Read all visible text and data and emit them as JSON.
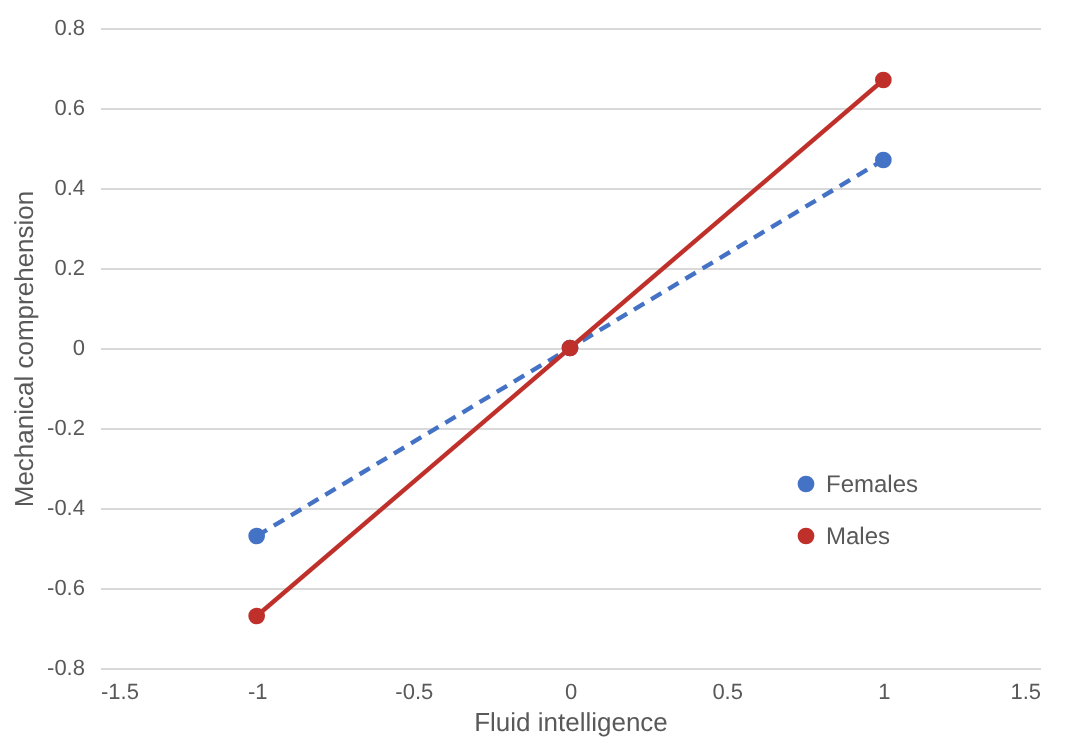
{
  "chart_data": {
    "type": "line",
    "xlabel": "Fluid intelligence",
    "ylabel": "Mechanical comprehension",
    "x": [
      -1,
      0,
      1
    ],
    "series": [
      {
        "name": "Females",
        "color": "#4472c4",
        "line_style": "dashed",
        "values": [
          -0.47,
          0,
          0.47
        ]
      },
      {
        "name": "Males",
        "color": "#c0302b",
        "line_style": "solid",
        "values": [
          -0.67,
          0,
          0.67
        ]
      }
    ],
    "xlim": [
      -1.5,
      1.5
    ],
    "xticks": [
      -1.5,
      -1,
      -0.5,
      0,
      0.5,
      1,
      1.5
    ],
    "ylim": [
      -0.8,
      0.8
    ],
    "yticks": [
      -0.8,
      -0.6,
      -0.4,
      -0.2,
      0,
      0.2,
      0.4,
      0.6,
      0.8
    ],
    "grid": "y",
    "legend": "bottom right",
    "marker": "circle"
  }
}
